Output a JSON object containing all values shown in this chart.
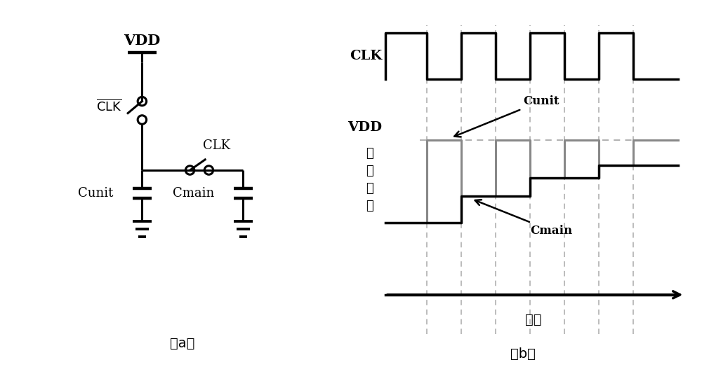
{
  "bg_color": "#ffffff",
  "line_color": "#000000",
  "gray_color": "#888888",
  "dashed_color": "#aaaaaa",
  "fig_label_a": "（a）",
  "fig_label_b": "（b）",
  "label_VDD": "VDD",
  "label_CLK_bar": "$\\overline{\\mathrm{CLK}}$",
  "label_CLK": "CLK",
  "label_Cunit_a": "Cunit",
  "label_Cmain_a": "Cmain",
  "label_CLK_b": "CLK",
  "label_VDD_b": "VDD",
  "label_Cunit_b": "Cunit",
  "label_Cmain_b": "Cmain",
  "label_y_b": "电\n容\n电\n压",
  "label_x_b": "时间"
}
